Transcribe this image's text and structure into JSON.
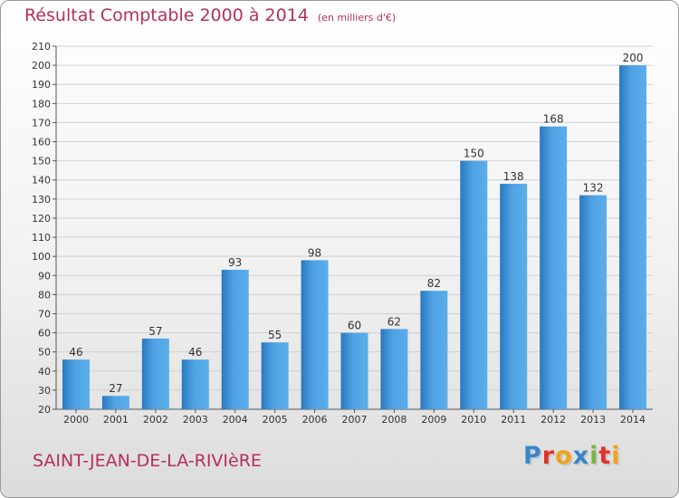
{
  "title": "Résultat Comptable 2000 à 2014",
  "unit": "(en milliers d'€)",
  "commune": "SAINT-JEAN-DE-LA-RIVIèRE",
  "logo": {
    "text": "Proxiti",
    "letters": [
      {
        "ch": "P",
        "color": "#3a86c8"
      },
      {
        "ch": "r",
        "color": "#e0332b"
      },
      {
        "ch": "o",
        "color": "#f0a31c"
      },
      {
        "ch": "x",
        "color": "#3a86c8"
      },
      {
        "ch": "i",
        "color": "#7cb342"
      },
      {
        "ch": "t",
        "color": "#e0332b"
      },
      {
        "ch": "i",
        "color": "#f0a31c"
      }
    ]
  },
  "colors": {
    "title": "#b5305a",
    "bar": "#4a9de0",
    "bar_dark": "#2a78c0",
    "grid": "#d0d0d0"
  },
  "chart_data": {
    "type": "bar",
    "title": "Résultat Comptable 2000 à 2014",
    "subtitle": "(en milliers d'€)",
    "categories": [
      "2000",
      "2001",
      "2002",
      "2003",
      "2004",
      "2005",
      "2006",
      "2007",
      "2008",
      "2009",
      "2010",
      "2011",
      "2012",
      "2013",
      "2014"
    ],
    "values": [
      46,
      27,
      57,
      46,
      93,
      55,
      98,
      60,
      62,
      82,
      150,
      138,
      168,
      132,
      200
    ],
    "ylim": [
      20,
      210
    ],
    "yticks": [
      20,
      30,
      40,
      50,
      60,
      70,
      80,
      90,
      100,
      110,
      120,
      130,
      140,
      150,
      160,
      170,
      180,
      190,
      200,
      210
    ],
    "grid": true,
    "xlabel": "",
    "ylabel": ""
  }
}
